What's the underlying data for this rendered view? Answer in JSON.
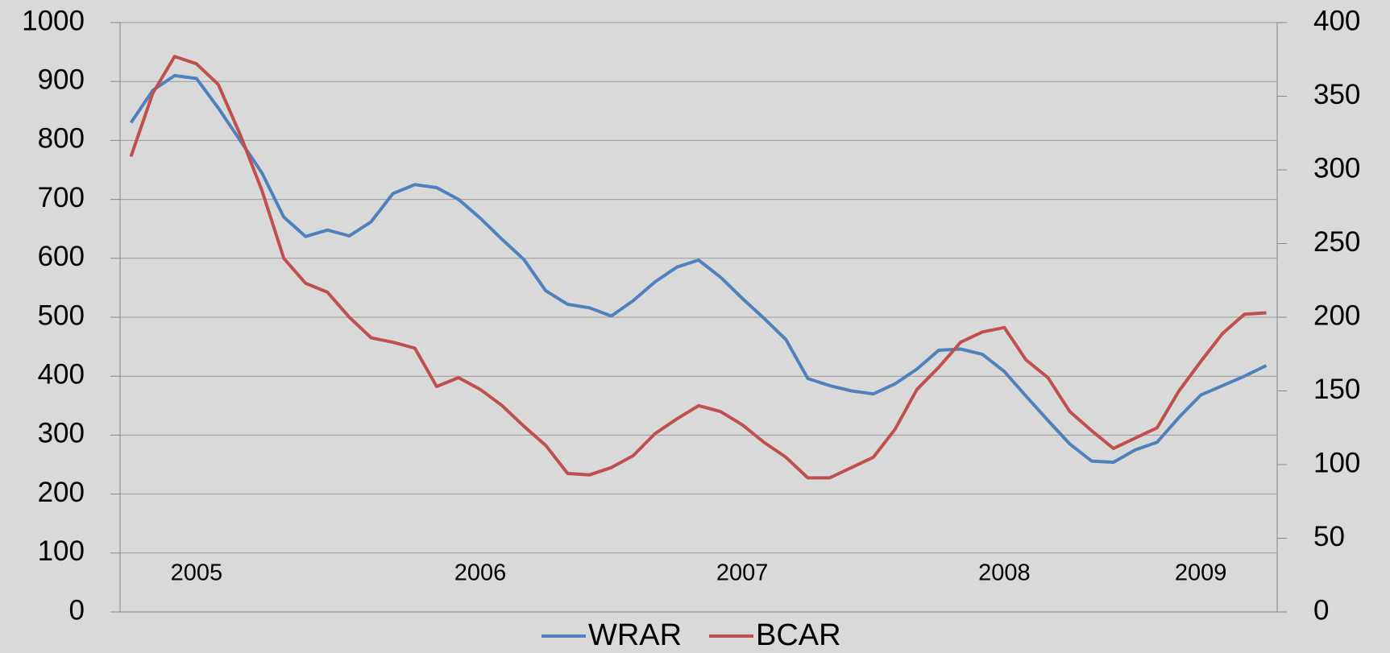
{
  "chart_data": {
    "type": "line",
    "categories": [
      null,
      null,
      null,
      "2005",
      null,
      null,
      null,
      null,
      null,
      null,
      null,
      null,
      null,
      null,
      null,
      null,
      "2006",
      null,
      null,
      null,
      null,
      null,
      null,
      null,
      null,
      null,
      null,
      null,
      "2007",
      null,
      null,
      null,
      null,
      null,
      null,
      null,
      null,
      null,
      null,
      null,
      "2008",
      null,
      null,
      null,
      null,
      null,
      null,
      null,
      null,
      "2009",
      null,
      null,
      null
    ],
    "series": [
      {
        "name": "WRAR",
        "color": "#4f81bd",
        "axis": "y",
        "values": [
          830,
          885,
          910,
          905,
          855,
          800,
          745,
          670,
          637,
          648,
          638,
          662,
          710,
          725,
          720,
          700,
          668,
          632,
          598,
          545,
          522,
          516,
          502,
          528,
          560,
          585,
          597,
          568,
          532,
          498,
          462,
          396,
          384,
          375,
          370,
          387,
          412,
          444,
          446,
          437,
          408,
          366,
          325,
          285,
          256,
          254,
          275,
          288,
          330,
          368,
          384,
          400,
          418
        ]
      },
      {
        "name": "BCAR",
        "color": "#c0504d",
        "axis": "y2",
        "values": [
          309,
          352,
          377,
          372,
          358,
          324,
          286,
          240,
          223,
          217,
          200,
          186,
          183,
          179,
          153,
          159,
          151,
          140,
          126,
          113,
          94,
          93,
          98,
          106,
          121,
          131,
          140,
          136,
          127,
          115,
          105,
          91,
          91,
          98,
          105,
          124,
          151,
          166,
          183,
          190,
          193,
          171,
          159,
          136,
          123,
          111,
          118,
          125,
          150,
          170,
          189,
          202,
          203
        ]
      }
    ],
    "ylim": [
      0,
      1000
    ],
    "yticks": [
      0,
      100,
      200,
      300,
      400,
      500,
      600,
      700,
      800,
      900,
      1000
    ],
    "y2lim": [
      0,
      400
    ],
    "y2ticks": [
      0,
      50,
      100,
      150,
      200,
      250,
      300,
      350,
      400
    ],
    "grid": true,
    "legend": "bottom"
  }
}
